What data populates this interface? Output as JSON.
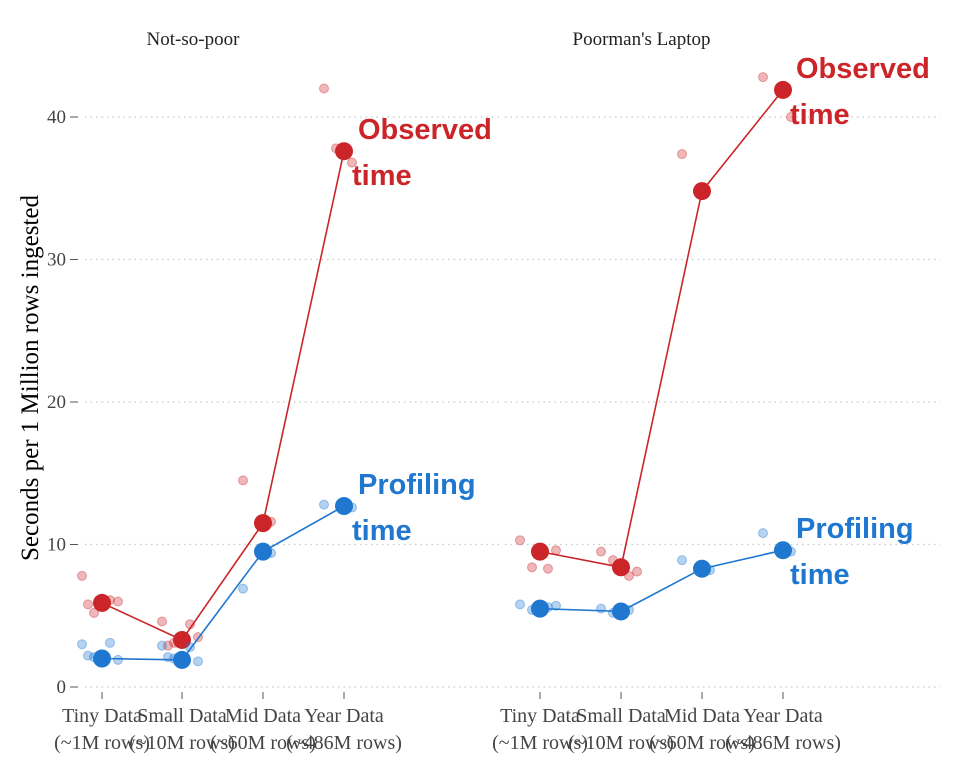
{
  "ylabel": "Seconds per 1 Million rows ingested",
  "colors": {
    "observed": "#cc2529",
    "profiling": "#1f77d0",
    "grid": "#c8c8c8",
    "axis": "#555555"
  },
  "chart_data": [
    {
      "type": "line",
      "title": "Not-so-poor",
      "categories": [
        "Tiny Data\n(~1M rows)",
        "Small Data\n(~10M rows)",
        "Mid Data\n(~60M rows)",
        "Year Data\n(~486M rows)"
      ],
      "ylim": [
        0,
        44
      ],
      "yticks": [
        0,
        10,
        20,
        30,
        40
      ],
      "grid": "horizontal dotted",
      "series": [
        {
          "key": "observed",
          "name": "Observed\ntime",
          "values": [
            5.9,
            3.3,
            11.5,
            37.6
          ],
          "jitter": [
            [
              5.9,
              7.8,
              6.1,
              5.2,
              6.0,
              5.8
            ],
            [
              3.3,
              4.6,
              4.4,
              3.1,
              3.5,
              2.9
            ],
            [
              11.5,
              14.5,
              11.6
            ],
            [
              37.6,
              42.0,
              36.8,
              37.8
            ]
          ]
        },
        {
          "key": "profiling",
          "name": "Profiling\ntime",
          "values": [
            2.0,
            1.9,
            9.5,
            12.7
          ],
          "jitter": [
            [
              2.0,
              3.0,
              3.1,
              2.1,
              1.9,
              2.2
            ],
            [
              1.9,
              2.9,
              2.8,
              2.0,
              1.8,
              2.1
            ],
            [
              9.5,
              6.9,
              9.4
            ],
            [
              12.7,
              12.8,
              12.6
            ]
          ]
        }
      ]
    },
    {
      "type": "line",
      "title": "Poorman's Laptop",
      "categories": [
        "Tiny Data\n(~1M rows)",
        "Small Data\n(~10M rows)",
        "Mid Data\n(~60M rows)",
        "Year Data\n(~486M rows)"
      ],
      "ylim": [
        0,
        44
      ],
      "yticks": [
        0,
        10,
        20,
        30,
        40
      ],
      "grid": "horizontal dotted",
      "series": [
        {
          "key": "observed",
          "name": "Observed\ntime",
          "values": [
            9.5,
            8.4,
            34.8,
            41.9
          ],
          "jitter": [
            [
              9.5,
              10.3,
              8.3,
              8.4,
              9.6
            ],
            [
              8.4,
              9.5,
              7.8,
              8.9,
              8.1
            ],
            [
              34.8,
              37.4
            ],
            [
              41.9,
              42.8,
              40.0
            ]
          ]
        },
        {
          "key": "profiling",
          "name": "Profiling\ntime",
          "values": [
            5.5,
            5.3,
            8.3,
            9.6
          ],
          "jitter": [
            [
              5.5,
              5.8,
              5.6,
              5.4,
              5.7
            ],
            [
              5.3,
              5.5,
              5.4,
              5.2
            ],
            [
              8.3,
              8.9,
              8.2
            ],
            [
              9.6,
              10.8,
              9.5
            ]
          ]
        }
      ]
    }
  ]
}
